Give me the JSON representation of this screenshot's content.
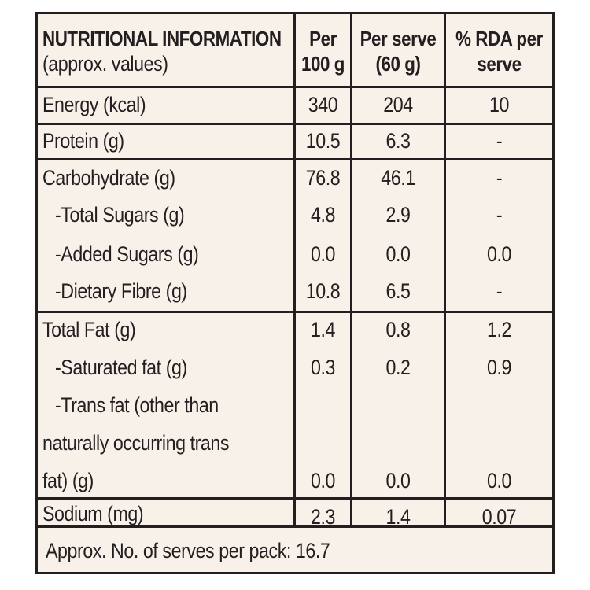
{
  "table": {
    "header": {
      "col0_line1": "NUTRITIONAL INFORMATION",
      "col0_line2": "(approx. values)",
      "col1_line1": "Per",
      "col1_line2": "100 g",
      "col2_line1": "Per serve",
      "col2_line2": "(60 g)",
      "col3_line1": "% RDA per",
      "col3_line2": "serve"
    },
    "rows": [
      {
        "label": "Energy (kcal)",
        "per100": "340",
        "perServe": "204",
        "rda": "10"
      },
      {
        "label": "Protein (g)",
        "per100": "10.5",
        "perServe": "6.3",
        "rda": "-"
      },
      {
        "label": "Carbohydrate (g)",
        "per100": "76.8",
        "perServe": "46.1",
        "rda": "-"
      },
      {
        "label": "-Total Sugars (g)",
        "per100": "4.8",
        "perServe": "2.9",
        "rda": "-"
      },
      {
        "label": "-Added Sugars (g)",
        "per100": "0.0",
        "perServe": "0.0",
        "rda": "0.0"
      },
      {
        "label": "-Dietary Fibre (g)",
        "per100": "10.8",
        "perServe": "6.5",
        "rda": "-"
      },
      {
        "label": "Total Fat (g)",
        "per100": "1.4",
        "perServe": "0.8",
        "rda": "1.2"
      },
      {
        "label": "-Saturated fat  (g)",
        "per100": "0.3",
        "perServe": "0.2",
        "rda": "0.9"
      },
      {
        "label_line1": "-Trans fat (other than",
        "label_line2": "naturally occurring trans",
        "label_line3": "fat) (g)",
        "per100": "0.0",
        "perServe": "0.0",
        "rda": "0.0"
      },
      {
        "label": "Sodium (mg)",
        "per100": "2.3",
        "perServe": "1.4",
        "rda": "0.07"
      }
    ],
    "footer": "Approx. No. of serves per pack: 16.7"
  }
}
